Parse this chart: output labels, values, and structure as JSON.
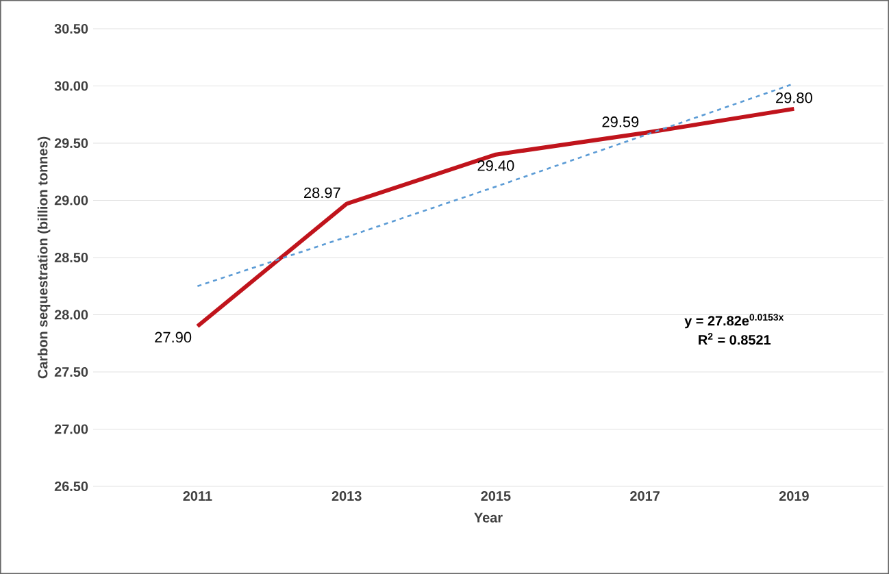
{
  "chart_data": {
    "type": "line",
    "xlabel": "Year",
    "ylabel": "Carbon sequestration (billion tonnes)",
    "categories": [
      "2011",
      "2013",
      "2015",
      "2017",
      "2019"
    ],
    "series": [
      {
        "color": "#c0141c",
        "values": [
          27.9,
          28.97,
          29.4,
          29.59,
          29.8
        ],
        "value_labels": [
          "27.90",
          "28.97",
          "29.40",
          "29.59",
          "29.80"
        ],
        "line_style": "solid"
      },
      {
        "color": "#5b9bd5",
        "values": [
          28.25,
          28.68,
          29.12,
          29.57,
          30.02
        ],
        "line_style": "dashed"
      }
    ],
    "ylim": [
      26.5,
      30.5
    ],
    "yticks": [
      {
        "value": 26.5,
        "label": "26.50"
      },
      {
        "value": 27,
        "label": "27.00"
      },
      {
        "value": 27.5,
        "label": "27.50"
      },
      {
        "value": 28,
        "label": "28.00"
      },
      {
        "value": 28.5,
        "label": "28.50"
      },
      {
        "value": 29,
        "label": "29.00"
      },
      {
        "value": 29.5,
        "label": "29.50"
      },
      {
        "value": 30,
        "label": "30.00"
      },
      {
        "value": 30.5,
        "label": "30.50"
      }
    ],
    "grid": "y",
    "marker": "none",
    "annotations": [
      "y = 27.82e$^{0.0153x}$",
      "R$^{2}$ = 0.8521"
    ]
  }
}
